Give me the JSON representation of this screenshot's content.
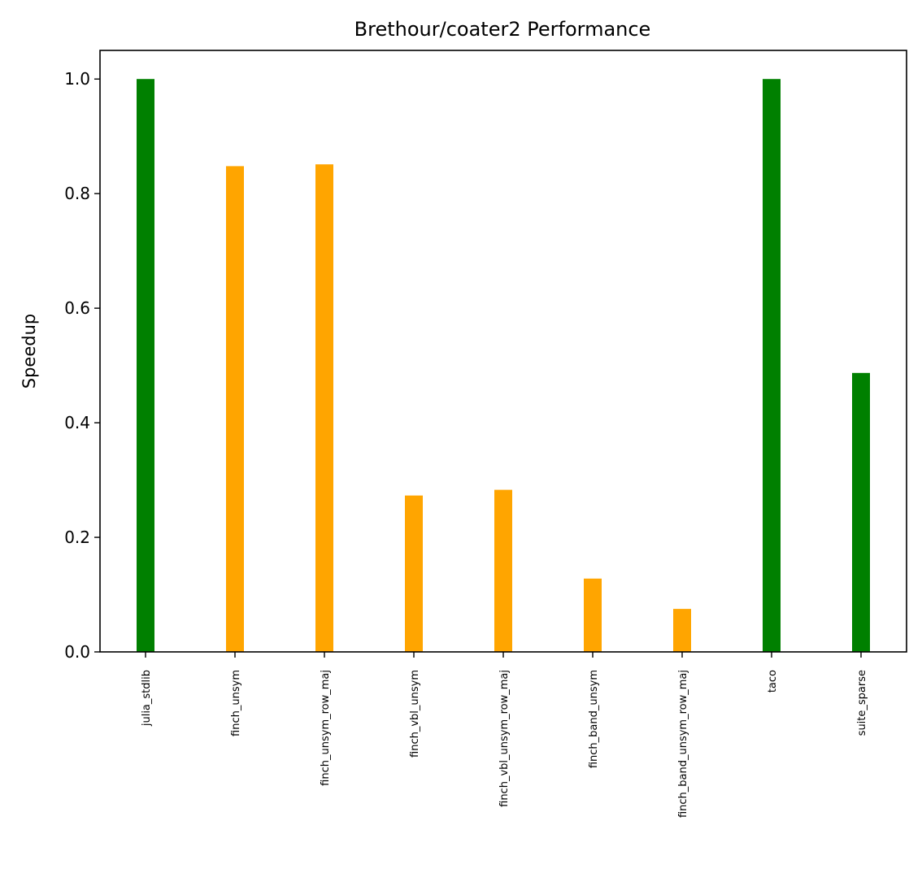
{
  "chart_data": {
    "type": "bar",
    "title": "Brethour/coater2 Performance",
    "xlabel": "",
    "ylabel": "Speedup",
    "categories": [
      "julia_stdlib",
      "finch_unsym",
      "finch_unsym_row_maj",
      "finch_vbl_unsym",
      "finch_vbl_unsym_row_maj",
      "finch_band_unsym",
      "finch_band_unsym_row_maj",
      "taco",
      "suite_sparse"
    ],
    "values": [
      1.0,
      0.848,
      0.851,
      0.273,
      0.283,
      0.128,
      0.075,
      1.0,
      0.487
    ],
    "bar_colors": [
      "#008000",
      "#ffa500",
      "#ffa500",
      "#ffa500",
      "#ffa500",
      "#ffa500",
      "#ffa500",
      "#008000",
      "#008000"
    ],
    "ylim": [
      0,
      1.05
    ],
    "yticks": [
      "0.0",
      "0.2",
      "0.4",
      "0.6",
      "0.8",
      "1.0"
    ],
    "grid": false
  }
}
